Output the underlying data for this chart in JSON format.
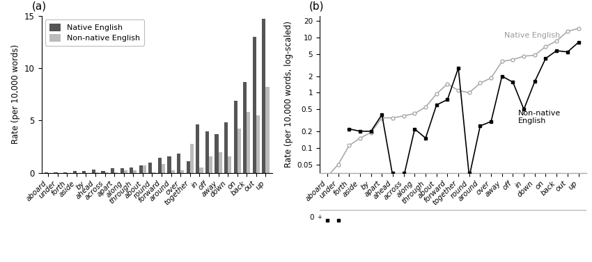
{
  "categories_a": [
    "aboard",
    "under",
    "forth",
    "aside",
    "by",
    "ahead",
    "across",
    "apart",
    "along",
    "through",
    "about",
    "round",
    "forward",
    "around",
    "over",
    "together",
    "in",
    "off",
    "away",
    "down",
    "on",
    "back",
    "out",
    "up"
  ],
  "native_a": [
    0.03,
    0.03,
    0.03,
    0.18,
    0.22,
    0.35,
    0.22,
    0.45,
    0.45,
    0.55,
    0.75,
    1.0,
    1.45,
    1.55,
    1.85,
    1.1,
    4.6,
    4.0,
    3.7,
    4.8,
    6.9,
    8.7,
    13.0,
    14.7
  ],
  "nonnative_a": [
    0.0,
    0.0,
    0.0,
    0.0,
    0.0,
    0.03,
    0.03,
    0.03,
    0.25,
    0.25,
    0.7,
    0.03,
    0.85,
    0.28,
    0.28,
    2.8,
    0.5,
    1.55,
    2.0,
    1.6,
    4.2,
    5.8,
    5.5,
    8.2
  ],
  "categories_b": [
    "aboard",
    "under",
    "forth",
    "aside",
    "by",
    "apart",
    "ahead",
    "across",
    "along",
    "through",
    "about",
    "forward",
    "together",
    "round",
    "around",
    "over",
    "away",
    "off",
    "in",
    "down",
    "on",
    "back",
    "out",
    "up"
  ],
  "native_b": [
    0.03,
    0.05,
    0.11,
    0.15,
    0.19,
    0.35,
    0.35,
    0.38,
    0.42,
    0.55,
    0.95,
    1.45,
    1.1,
    1.0,
    1.5,
    1.85,
    3.7,
    4.0,
    4.6,
    4.8,
    6.9,
    8.7,
    13.0,
    14.7
  ],
  "nonnative_b": [
    0.0,
    0.0,
    0.22,
    0.2,
    0.2,
    0.4,
    0.03,
    0.03,
    0.22,
    0.15,
    0.6,
    0.75,
    2.8,
    0.03,
    0.25,
    0.3,
    2.0,
    1.55,
    0.5,
    1.6,
    4.2,
    5.8,
    5.5,
    8.2
  ],
  "native_color": "#555555",
  "nonnative_color": "#bbbbbb",
  "ylabel_a": "Rate (per 10,000 words)",
  "ylabel_b": "Rate (per 10,000 words, log-scaled)",
  "label_a": "(a)",
  "label_b": "(b)",
  "legend_native": "Native English",
  "legend_nonnative": "Non-native English",
  "yticks_b": [
    0.05,
    0.1,
    0.2,
    0.5,
    1,
    2,
    5,
    10,
    20
  ],
  "ytick_labels_b": [
    "0.05",
    "0.1",
    "0.2",
    "0.5",
    "1",
    "2",
    "5",
    "10",
    "20"
  ]
}
